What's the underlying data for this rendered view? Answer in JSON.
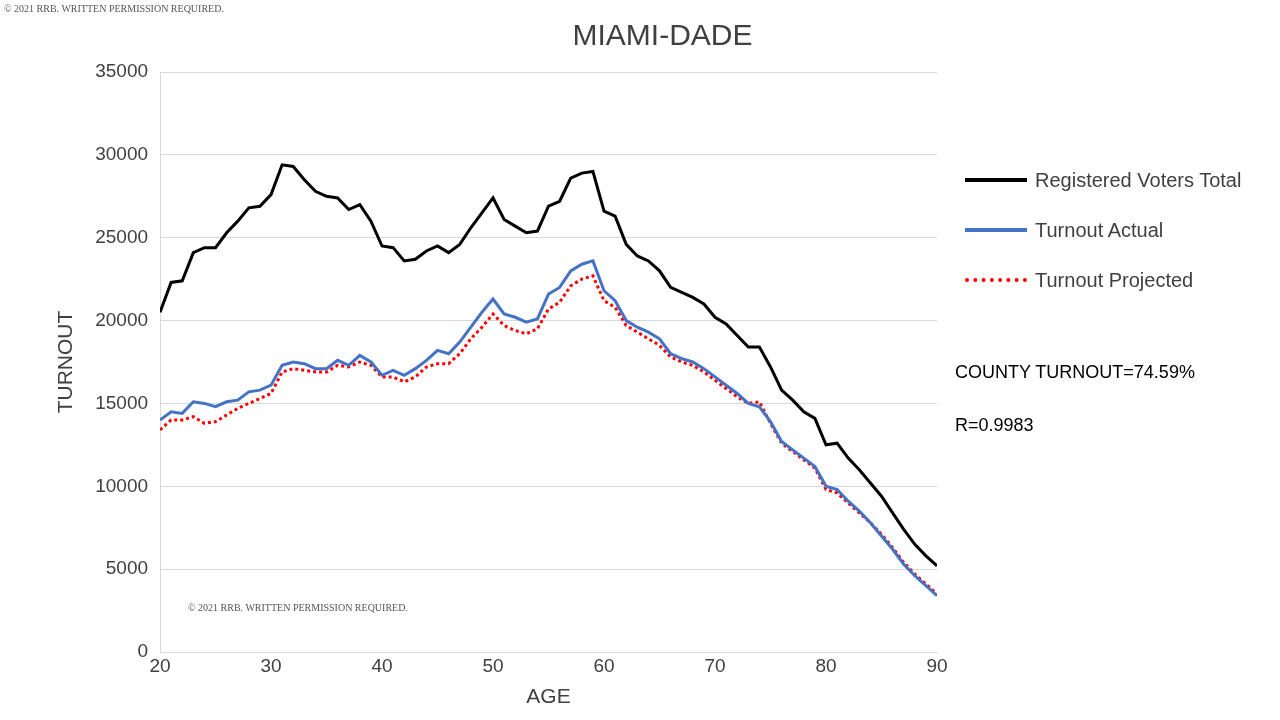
{
  "chart_data": {
    "type": "line",
    "title": "MIAMI-DADE",
    "x_label": "AGE",
    "y_label": "TURNOUT",
    "annotations": [
      "© 2021 RRB. WRITTEN PERMISSION REQUIRED.",
      "© 2021 RRB. WRITTEN PERMISSION REQUIRED.",
      "COUNTY TURNOUT=74.59%",
      "R=0.9983"
    ],
    "x": [
      20,
      21,
      22,
      23,
      24,
      25,
      26,
      27,
      28,
      29,
      30,
      31,
      32,
      33,
      34,
      35,
      36,
      37,
      38,
      39,
      40,
      41,
      42,
      43,
      44,
      45,
      46,
      47,
      48,
      49,
      50,
      51,
      52,
      53,
      54,
      55,
      56,
      57,
      58,
      59,
      60,
      61,
      62,
      63,
      64,
      65,
      66,
      67,
      68,
      69,
      70,
      71,
      72,
      73,
      74,
      75,
      76,
      77,
      78,
      79,
      80,
      81,
      82,
      83,
      84,
      85,
      86,
      87,
      88,
      89,
      90
    ],
    "series": [
      {
        "name": "Registered Voters Total",
        "color": "#000000",
        "line_style": "solid",
        "values": [
          20500,
          22300,
          22400,
          24100,
          24400,
          24400,
          25300,
          26000,
          26800,
          26900,
          27600,
          29400,
          29300,
          28500,
          27800,
          27500,
          27400,
          26700,
          27000,
          26000,
          24500,
          24400,
          23600,
          23700,
          24200,
          24500,
          24100,
          24600,
          25600,
          26500,
          27400,
          26100,
          25700,
          25300,
          25400,
          26900,
          27200,
          28600,
          28900,
          29000,
          26600,
          26300,
          24600,
          23900,
          23600,
          23000,
          22000,
          21700,
          21400,
          21000,
          20200,
          19800,
          19100,
          18400,
          18400,
          17200,
          15800,
          15200,
          14500,
          14100,
          12500,
          12600,
          11700,
          11000,
          10200,
          9400,
          8400,
          7400,
          6500,
          5800,
          5200
        ]
      },
      {
        "name": "Turnout Actual",
        "color": "#4472c4",
        "line_style": "solid",
        "values": [
          14000,
          14500,
          14400,
          15100,
          15000,
          14800,
          15100,
          15200,
          15700,
          15800,
          16100,
          17300,
          17500,
          17400,
          17100,
          17100,
          17600,
          17300,
          17900,
          17500,
          16700,
          17000,
          16700,
          17100,
          17600,
          18200,
          18000,
          18700,
          19600,
          20500,
          21300,
          20400,
          20200,
          19900,
          20100,
          21600,
          22000,
          23000,
          23400,
          23600,
          21800,
          21200,
          20000,
          19600,
          19300,
          18900,
          18000,
          17700,
          17500,
          17100,
          16600,
          16100,
          15600,
          15000,
          14800,
          13900,
          12700,
          12200,
          11700,
          11200,
          10000,
          9800,
          9100,
          8500,
          7800,
          7000,
          6200,
          5300,
          4600,
          4000,
          3400
        ]
      },
      {
        "name": "Turnout Projected",
        "color": "#ff0000",
        "line_style": "dotted",
        "values": [
          13400,
          14000,
          14000,
          14200,
          13800,
          13900,
          14300,
          14700,
          15000,
          15300,
          15600,
          16900,
          17100,
          17000,
          16900,
          16900,
          17300,
          17200,
          17500,
          17300,
          16600,
          16600,
          16300,
          16600,
          17200,
          17400,
          17400,
          18000,
          18900,
          19600,
          20400,
          19700,
          19400,
          19200,
          19500,
          20700,
          21100,
          22100,
          22500,
          22700,
          21200,
          20800,
          19700,
          19300,
          18900,
          18500,
          17800,
          17500,
          17300,
          16900,
          16400,
          15900,
          15400,
          15000,
          15100,
          13800,
          12600,
          12100,
          11600,
          11100,
          9800,
          9600,
          9000,
          8400,
          7800,
          7100,
          6300,
          5400,
          4700,
          4100,
          3500
        ]
      }
    ],
    "xlim": [
      20,
      90
    ],
    "xticks": [
      20,
      30,
      40,
      50,
      60,
      70,
      80,
      90
    ],
    "ylim": [
      0,
      35000
    ],
    "yticks": [
      0,
      5000,
      10000,
      15000,
      20000,
      25000,
      30000,
      35000
    ],
    "grid": "y",
    "legend": "right"
  }
}
